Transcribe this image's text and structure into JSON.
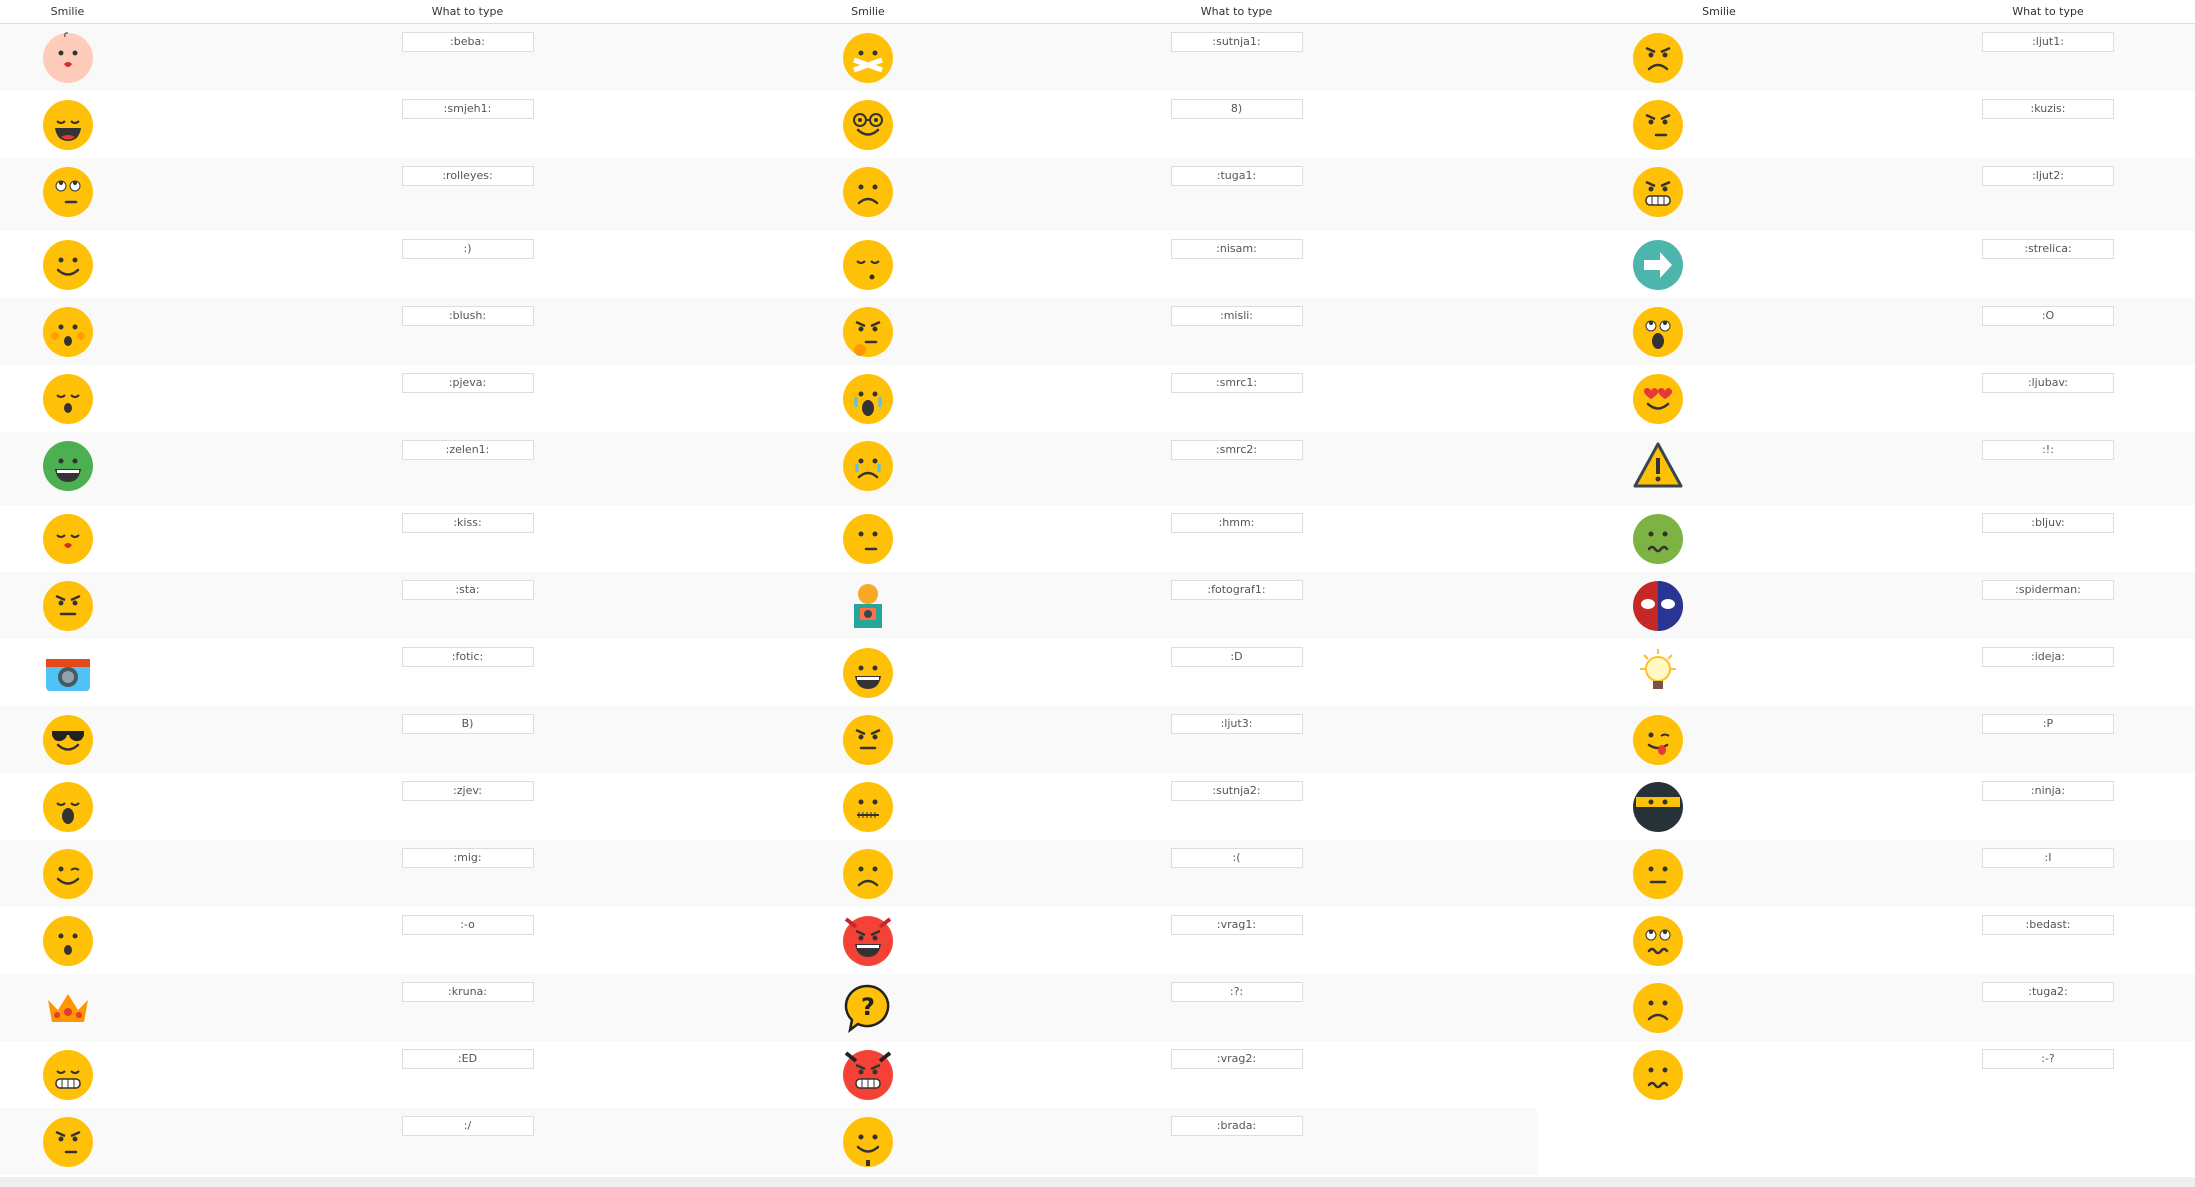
{
  "headers": {
    "smilie": "Smilie",
    "type": "What to type"
  },
  "groups": [
    [
      {
        "icon": "baby",
        "code": ":beba:"
      },
      {
        "icon": "laughing",
        "code": ":smjeh1:"
      },
      {
        "icon": "rolleyes",
        "code": ":rolleyes:"
      },
      {
        "icon": "smile",
        "code": ":)"
      },
      {
        "icon": "blush",
        "code": ":blush:"
      },
      {
        "icon": "singing",
        "code": ":pjeva:"
      },
      {
        "icon": "green-grin",
        "code": ":zelen1:"
      },
      {
        "icon": "kiss",
        "code": ":kiss:"
      },
      {
        "icon": "suspicious",
        "code": ":sta:"
      },
      {
        "icon": "camera",
        "code": ":fotic:"
      },
      {
        "icon": "sunglasses",
        "code": "B)"
      },
      {
        "icon": "yawn",
        "code": ":zjev:"
      },
      {
        "icon": "wink",
        "code": ":mig:"
      },
      {
        "icon": "surprised",
        "code": ":-o"
      },
      {
        "icon": "crown",
        "code": ":kruna:"
      },
      {
        "icon": "grin-teeth",
        "code": ":ED"
      },
      {
        "icon": "confused",
        "code": ":/"
      }
    ],
    [
      {
        "icon": "mouth-taped",
        "code": ":sutnja1:"
      },
      {
        "icon": "glasses",
        "code": "8)"
      },
      {
        "icon": "sad",
        "code": ":tuga1:"
      },
      {
        "icon": "sleepy",
        "code": ":nisam:"
      },
      {
        "icon": "thinking",
        "code": ":misli:"
      },
      {
        "icon": "crying",
        "code": ":smrc1:"
      },
      {
        "icon": "tearful",
        "code": ":smrc2:"
      },
      {
        "icon": "hmm",
        "code": ":hmm:"
      },
      {
        "icon": "photographer",
        "code": ":fotograf1:"
      },
      {
        "icon": "big-grin",
        "code": ":D"
      },
      {
        "icon": "annoyed",
        "code": ":ljut3:"
      },
      {
        "icon": "zipped",
        "code": ":sutnja2:"
      },
      {
        "icon": "frown",
        "code": ":("
      },
      {
        "icon": "devil",
        "code": ":vrag1:"
      },
      {
        "icon": "question-bubble",
        "code": ":?:"
      },
      {
        "icon": "devil2",
        "code": ":vrag2:"
      },
      {
        "icon": "beard",
        "code": ":brada:"
      }
    ],
    [
      {
        "icon": "angry",
        "code": ":ljut1:"
      },
      {
        "icon": "smirk-angry",
        "code": ":kuzis:"
      },
      {
        "icon": "angry-teeth",
        "code": ":ljut2:"
      },
      {
        "icon": "arrow-right",
        "code": ":strelica:"
      },
      {
        "icon": "shocked",
        "code": ":O"
      },
      {
        "icon": "heart-eyes",
        "code": ":ljubav:"
      },
      {
        "icon": "warning",
        "code": ":!:"
      },
      {
        "icon": "nauseous",
        "code": ":bljuv:"
      },
      {
        "icon": "spiderman",
        "code": ":spiderman:"
      },
      {
        "icon": "lightbulb",
        "code": ":ideja:"
      },
      {
        "icon": "tongue",
        "code": ":P"
      },
      {
        "icon": "ninja",
        "code": ":ninja:"
      },
      {
        "icon": "neutral",
        "code": ":I"
      },
      {
        "icon": "crazy",
        "code": ":bedast:"
      },
      {
        "icon": "sad2",
        "code": ":tuga2:"
      },
      {
        "icon": "worried",
        "code": ":-?"
      }
    ]
  ],
  "colors": {
    "face": "#FFC107",
    "teal": "#4DB6AC",
    "green": "#4CAF50",
    "red": "#F44336",
    "stripe": "#f9f9f9"
  }
}
